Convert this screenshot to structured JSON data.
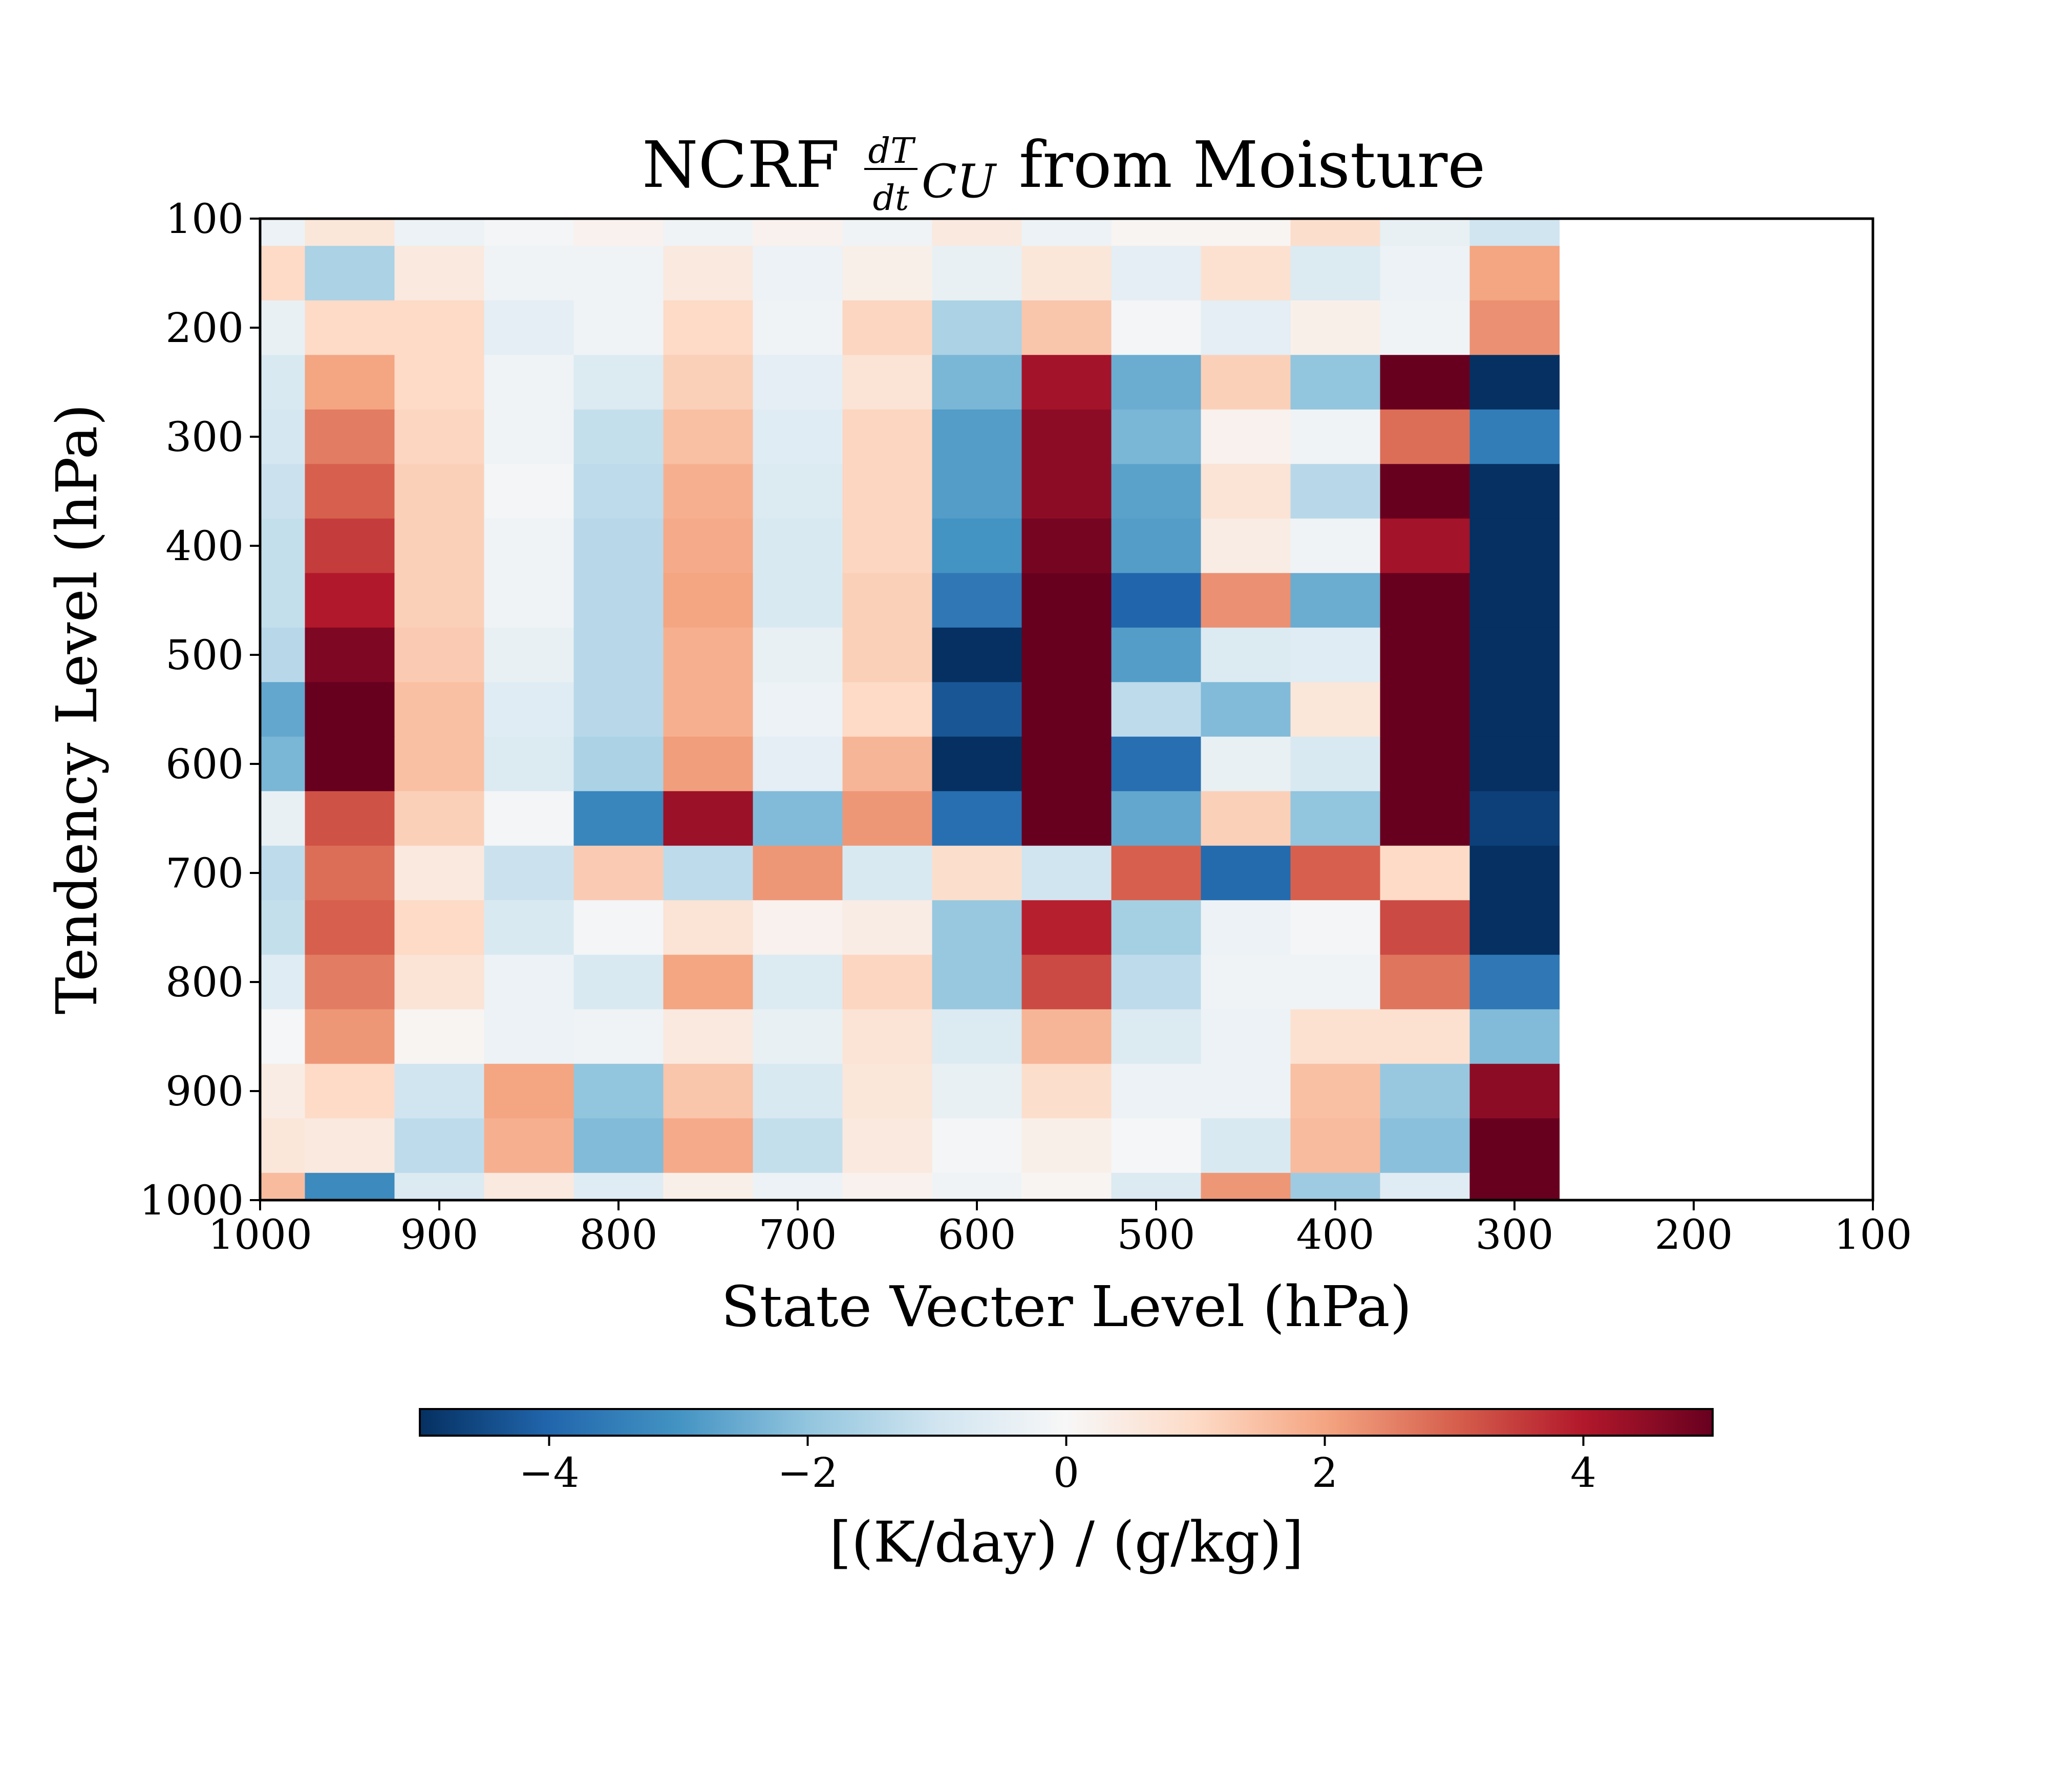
{
  "chart_data": {
    "type": "heatmap",
    "title_main": "NCRF",
    "title_frac_num": "dT",
    "title_frac_den": "dt",
    "title_sub": "CU",
    "title_rest": "from Moisture",
    "xlabel": "State Vecter Level (hPa)",
    "ylabel": "Tendency Level (hPa)",
    "xlim": [
      1000,
      100
    ],
    "ylim": [
      1000,
      100
    ],
    "x_tick_values": [
      1000,
      900,
      800,
      700,
      600,
      500,
      400,
      300,
      200,
      100
    ],
    "x_tick_labels": [
      "1000",
      "900",
      "800",
      "700",
      "600",
      "500",
      "400",
      "300",
      "200",
      "100"
    ],
    "y_tick_values": [
      100,
      200,
      300,
      400,
      500,
      600,
      700,
      800,
      900,
      1000
    ],
    "y_tick_labels": [
      "100",
      "200",
      "300",
      "400",
      "500",
      "600",
      "700",
      "800",
      "900",
      "1000"
    ],
    "colormap": "RdBu_r",
    "vmin": -5,
    "vmax": 5,
    "colorbar_label": "[(K/day) / (g/kg)]",
    "colorbar_tick_values": [
      -4,
      -2,
      0,
      2,
      4
    ],
    "colorbar_tick_labels": [
      "−4",
      "−2",
      "0",
      "2",
      "4"
    ],
    "x_centers": [
      1000,
      950,
      900,
      850,
      800,
      750,
      700,
      650,
      600,
      550,
      500,
      450,
      400,
      350,
      300
    ],
    "y_centers": [
      100,
      150,
      200,
      250,
      300,
      350,
      400,
      450,
      500,
      550,
      600,
      650,
      700,
      750,
      800,
      850,
      900,
      950,
      1000
    ],
    "values": [
      [
        -0.3,
        0.6,
        -0.3,
        -0.1,
        0.2,
        -0.2,
        0.2,
        -0.2,
        0.5,
        -0.3,
        0.1,
        0.1,
        0.9,
        -0.4,
        -1.0
      ],
      [
        1.0,
        -1.6,
        0.5,
        -0.2,
        -0.2,
        0.5,
        -0.3,
        0.3,
        -0.4,
        0.6,
        -0.5,
        0.8,
        -0.7,
        -0.3,
        2.0
      ],
      [
        -0.4,
        1.0,
        1.0,
        -0.5,
        -0.2,
        1.0,
        -0.2,
        1.1,
        -1.6,
        1.4,
        -0.1,
        -0.5,
        0.3,
        -0.2,
        2.3
      ],
      [
        -0.8,
        2.0,
        1.0,
        -0.2,
        -0.7,
        1.2,
        -0.5,
        0.7,
        -2.3,
        4.2,
        -2.5,
        1.2,
        -2.0,
        5.0,
        -5.0
      ],
      [
        -0.9,
        2.6,
        1.1,
        -0.2,
        -1.2,
        1.5,
        -0.6,
        1.1,
        -2.8,
        4.5,
        -2.3,
        0.2,
        -0.2,
        2.8,
        -3.5
      ],
      [
        -1.1,
        3.0,
        1.2,
        -0.1,
        -1.3,
        1.8,
        -0.7,
        1.1,
        -2.8,
        4.5,
        -2.7,
        0.7,
        -1.4,
        5.0,
        -5.0
      ],
      [
        -1.2,
        3.5,
        1.2,
        -0.2,
        -1.4,
        1.9,
        -0.8,
        1.1,
        -3.0,
        4.8,
        -2.8,
        0.4,
        -0.2,
        4.2,
        -5.0
      ],
      [
        -1.2,
        4.0,
        1.2,
        -0.2,
        -1.4,
        2.0,
        -0.8,
        1.2,
        -3.6,
        5.0,
        -4.0,
        2.3,
        -2.5,
        5.0,
        -5.0
      ],
      [
        -1.4,
        4.7,
        1.3,
        -0.4,
        -1.4,
        1.8,
        -0.4,
        1.2,
        -5.0,
        5.0,
        -2.8,
        -0.7,
        -0.6,
        5.0,
        -5.0
      ],
      [
        -2.6,
        5.0,
        1.5,
        -0.6,
        -1.4,
        1.8,
        -0.3,
        1.0,
        -4.3,
        5.0,
        -1.3,
        -2.2,
        0.6,
        5.0,
        -5.0
      ],
      [
        -2.3,
        5.0,
        1.5,
        -0.7,
        -1.6,
        2.1,
        -0.5,
        1.7,
        -5.0,
        5.0,
        -3.8,
        -0.4,
        -0.8,
        5.0,
        -5.0
      ],
      [
        -0.4,
        3.2,
        1.2,
        -0.1,
        -3.3,
        4.3,
        -2.2,
        2.2,
        -3.8,
        5.0,
        -2.6,
        1.2,
        -2.0,
        5.0,
        -4.7
      ],
      [
        -1.3,
        2.8,
        0.5,
        -1.1,
        1.3,
        -1.3,
        2.2,
        -0.8,
        0.9,
        -1.0,
        3.0,
        -3.9,
        3.0,
        1.0,
        -5.0
      ],
      [
        -1.2,
        3.0,
        1.0,
        -0.8,
        -0.1,
        0.7,
        0.2,
        0.4,
        -1.9,
        3.9,
        -1.7,
        -0.3,
        -0.1,
        3.3,
        -5.0
      ],
      [
        -0.6,
        2.6,
        0.7,
        -0.3,
        -0.8,
        2.0,
        -0.7,
        1.1,
        -1.9,
        3.3,
        -1.3,
        -0.2,
        -0.2,
        2.7,
        -3.6
      ],
      [
        -0.05,
        2.2,
        0.1,
        -0.3,
        -0.2,
        0.5,
        -0.4,
        0.7,
        -0.7,
        1.7,
        -0.7,
        -0.3,
        0.8,
        0.8,
        -2.2
      ],
      [
        0.4,
        1.0,
        -1.0,
        2.0,
        -2.0,
        1.4,
        -0.8,
        0.6,
        -0.4,
        0.9,
        -0.3,
        -0.3,
        1.5,
        -1.9,
        4.5
      ],
      [
        0.6,
        0.5,
        -1.3,
        1.8,
        -2.2,
        1.9,
        -1.2,
        0.5,
        -0.1,
        0.3,
        -0.05,
        -0.8,
        1.6,
        -2.1,
        5.0
      ],
      [
        1.6,
        -3.2,
        -0.7,
        0.5,
        -0.6,
        0.3,
        -0.3,
        0.2,
        -0.2,
        0.1,
        -0.7,
        2.2,
        -1.8,
        -0.6,
        5.0
      ]
    ]
  }
}
